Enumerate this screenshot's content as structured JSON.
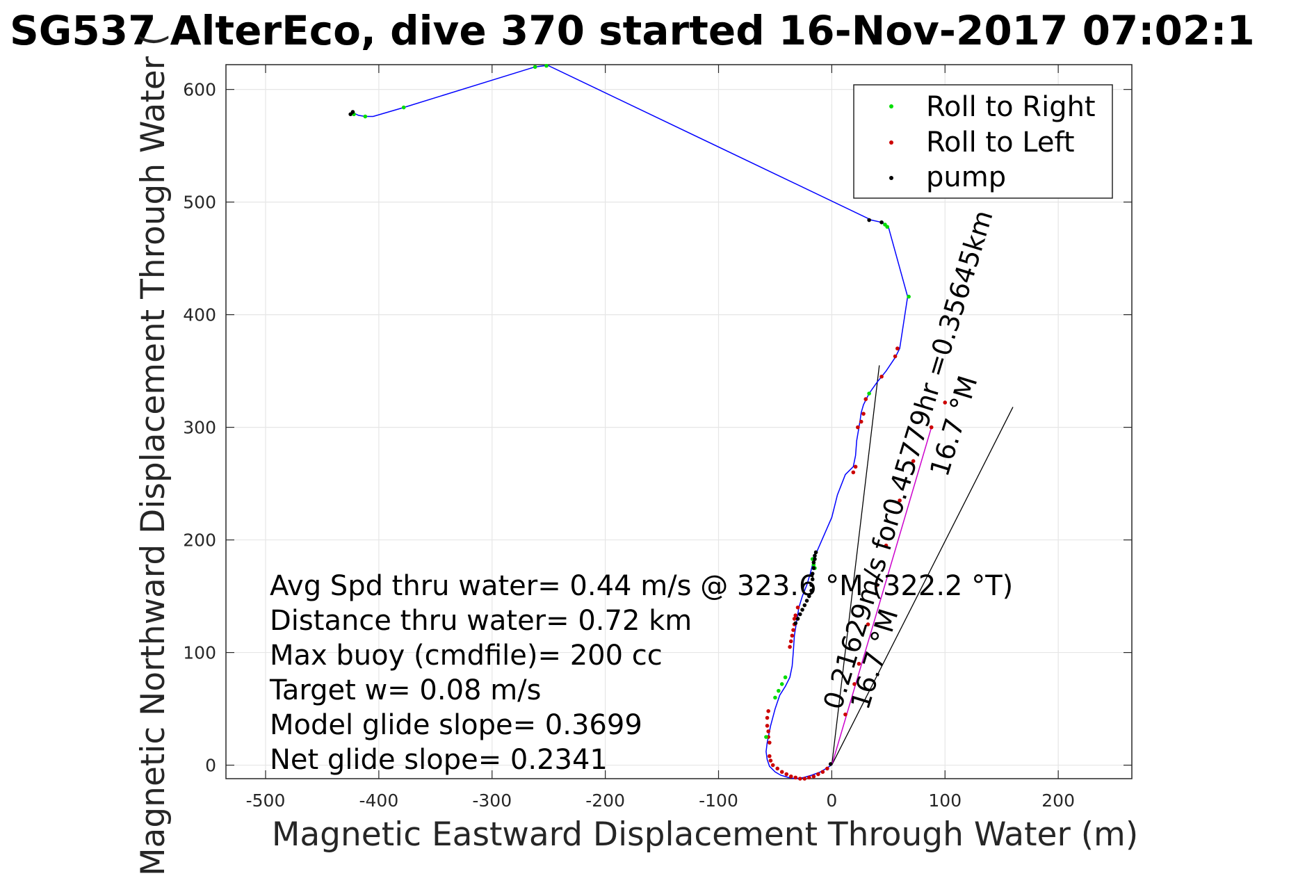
{
  "chart_data": {
    "type": "line",
    "title": "SG537 AlterEco, dive 370 started 16-Nov-2017 07:02:1",
    "xlabel": "Magnetic Eastward Displacement Through Water (m)",
    "ylabel": "Magnetic Northward Displacement Through Water (",
    "xlim": [
      -535,
      265
    ],
    "ylim": [
      -12,
      622
    ],
    "x_ticks": [
      -500,
      -400,
      -300,
      -200,
      -100,
      0,
      100,
      200
    ],
    "y_ticks": [
      0,
      100,
      200,
      300,
      400,
      500,
      600
    ],
    "grid": true,
    "legend_placement": "top-right",
    "legend": [
      "Roll to Right",
      "Roll to Left",
      "pump"
    ],
    "colors": {
      "track": "#0000ff",
      "roll_right": "#00dd00",
      "roll_left": "#cc0000",
      "pump": "#000000",
      "depth_avg": "#cc00cc",
      "grid": "#e6e6e6"
    },
    "track": {
      "x": [
        -0.5,
        -5,
        -10,
        -18,
        -25,
        -32,
        -38,
        -45,
        -50,
        -55,
        -57,
        -58,
        -57,
        -54,
        -50,
        -46,
        -41,
        -37,
        -35,
        -34,
        -33,
        -31,
        -29,
        -26,
        -22,
        -19,
        -17,
        -16,
        -15,
        -13,
        0,
        5,
        12,
        19,
        21,
        22,
        24,
        25,
        26,
        28,
        33,
        40,
        48,
        56,
        60,
        67,
        50,
        46,
        44,
        35,
        -250,
        -254,
        -262,
        -378,
        -405,
        -412,
        -418,
        -422,
        -424
      ],
      "y": [
        0,
        -3,
        -6,
        -9,
        -11,
        -12,
        -11,
        -9,
        -6,
        -1,
        5,
        12,
        20,
        35,
        50,
        62,
        70,
        78,
        88,
        100,
        115,
        128,
        140,
        150,
        160,
        170,
        178,
        185,
        188,
        190,
        220,
        240,
        258,
        265,
        275,
        288,
        300,
        306,
        313,
        320,
        330,
        340,
        350,
        362,
        370,
        416,
        478,
        481,
        482,
        484,
        621,
        621,
        620,
        584,
        576,
        576,
        577,
        579,
        578
      ]
    },
    "roll_right": {
      "x": [
        -17,
        -16,
        -15,
        -41,
        -44,
        -47,
        -50,
        -58,
        33,
        47,
        49,
        68,
        -252,
        -262,
        -378,
        -422,
        -412
      ],
      "y": [
        183,
        178,
        175,
        78,
        72,
        66,
        60,
        25,
        330,
        480,
        478,
        416,
        621,
        620,
        584,
        578,
        576
      ]
    },
    "roll_left": {
      "x": [
        -55,
        -54,
        -52,
        -48,
        -44,
        -40,
        -36,
        -32,
        -28,
        -24,
        -20,
        -16,
        -12,
        -8,
        -4,
        -37,
        -36,
        -35,
        -34,
        -33,
        -33,
        -32,
        -30,
        -55,
        -56,
        -56,
        -57,
        -57,
        -56,
        19,
        21,
        23,
        26,
        28,
        30,
        58,
        44,
        56,
        12,
        20,
        24,
        32,
        40,
        48,
        60,
        72,
        88,
        100
      ],
      "y": [
        8,
        4,
        0,
        -3,
        -6,
        -8,
        -10,
        -11,
        -12,
        -12,
        -11,
        -10,
        -8,
        -6,
        -3,
        105,
        110,
        115,
        120,
        125,
        130,
        133,
        140,
        20,
        25,
        30,
        35,
        42,
        48,
        260,
        265,
        300,
        305,
        312,
        325,
        370,
        345,
        363,
        45,
        72,
        90,
        125,
        160,
        195,
        235,
        270,
        300,
        322
      ]
    },
    "pump": {
      "x": [
        -18,
        -18,
        -17,
        -17,
        -16,
        -16,
        -15,
        -15,
        -14,
        -20,
        -22,
        -24,
        -26,
        -28,
        -30,
        -32,
        -1,
        33,
        44,
        -425,
        -423
      ],
      "y": [
        155,
        160,
        165,
        170,
        175,
        180,
        183,
        186,
        189,
        150,
        146,
        142,
        138,
        134,
        130,
        126,
        1,
        484,
        482,
        578,
        580
      ]
    },
    "depth_avg_line": {
      "x": [
        0,
        88
      ],
      "y": [
        0,
        300
      ]
    },
    "vector_lines": [
      {
        "x": [
          0,
          42
        ],
        "y": [
          0,
          355
        ]
      },
      {
        "x": [
          0,
          160
        ],
        "y": [
          0,
          318
        ]
      }
    ],
    "rotated_labels": [
      {
        "text": "0.21629m/s for0.45779hr =0.35645km",
        "x": 8,
        "y": 48,
        "angle": -73
      },
      {
        "text": "16.7 °M",
        "x": 32,
        "y": 48,
        "angle": -73
      },
      {
        "text": "16.7 °M",
        "x": 102,
        "y": 255,
        "angle": -73
      }
    ],
    "annotations": [
      "Avg Spd thru water=  0.44 m/s @ 323.6 °M (322.2 °T)",
      "Distance thru water=  0.72 km",
      "Max buoy (cmdfile)= 200 cc",
      "Target w= 0.08 m/s",
      "Model glide slope= 0.3699",
      "Net glide slope= 0.2341"
    ]
  }
}
